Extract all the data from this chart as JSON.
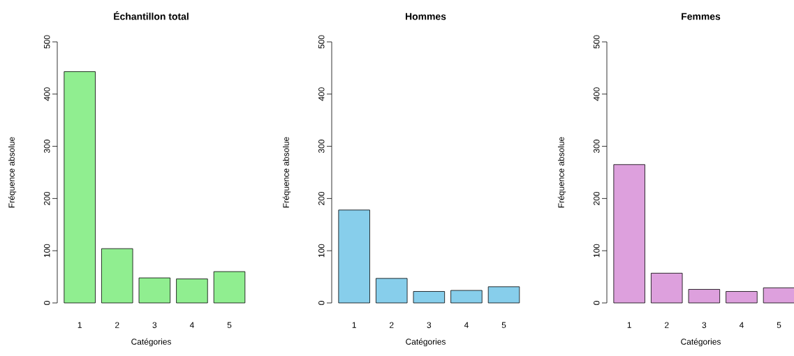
{
  "chart_data": [
    {
      "type": "bar",
      "title": "Échantillon total",
      "xlabel": "Catégories",
      "ylabel": "Fréquence absolue",
      "categories": [
        "1",
        "2",
        "3",
        "4",
        "5"
      ],
      "values": [
        443,
        104,
        48,
        46,
        60
      ],
      "color": "#90ee90",
      "ylim": [
        0,
        500
      ],
      "yticks": [
        0,
        100,
        200,
        300,
        400,
        500
      ]
    },
    {
      "type": "bar",
      "title": "Hommes",
      "xlabel": "Catégories",
      "ylabel": "Fréquence absolue",
      "categories": [
        "1",
        "2",
        "3",
        "4",
        "5"
      ],
      "values": [
        178,
        47,
        22,
        24,
        31
      ],
      "color": "#87ceeb",
      "ylim": [
        0,
        500
      ],
      "yticks": [
        0,
        100,
        200,
        300,
        400,
        500
      ]
    },
    {
      "type": "bar",
      "title": "Femmes",
      "xlabel": "Catégories",
      "ylabel": "Fréquence absolue",
      "categories": [
        "1",
        "2",
        "3",
        "4",
        "5"
      ],
      "values": [
        265,
        57,
        26,
        22,
        29
      ],
      "color": "#dda0dd",
      "ylim": [
        0,
        500
      ],
      "yticks": [
        0,
        100,
        200,
        300,
        400,
        500
      ]
    }
  ]
}
